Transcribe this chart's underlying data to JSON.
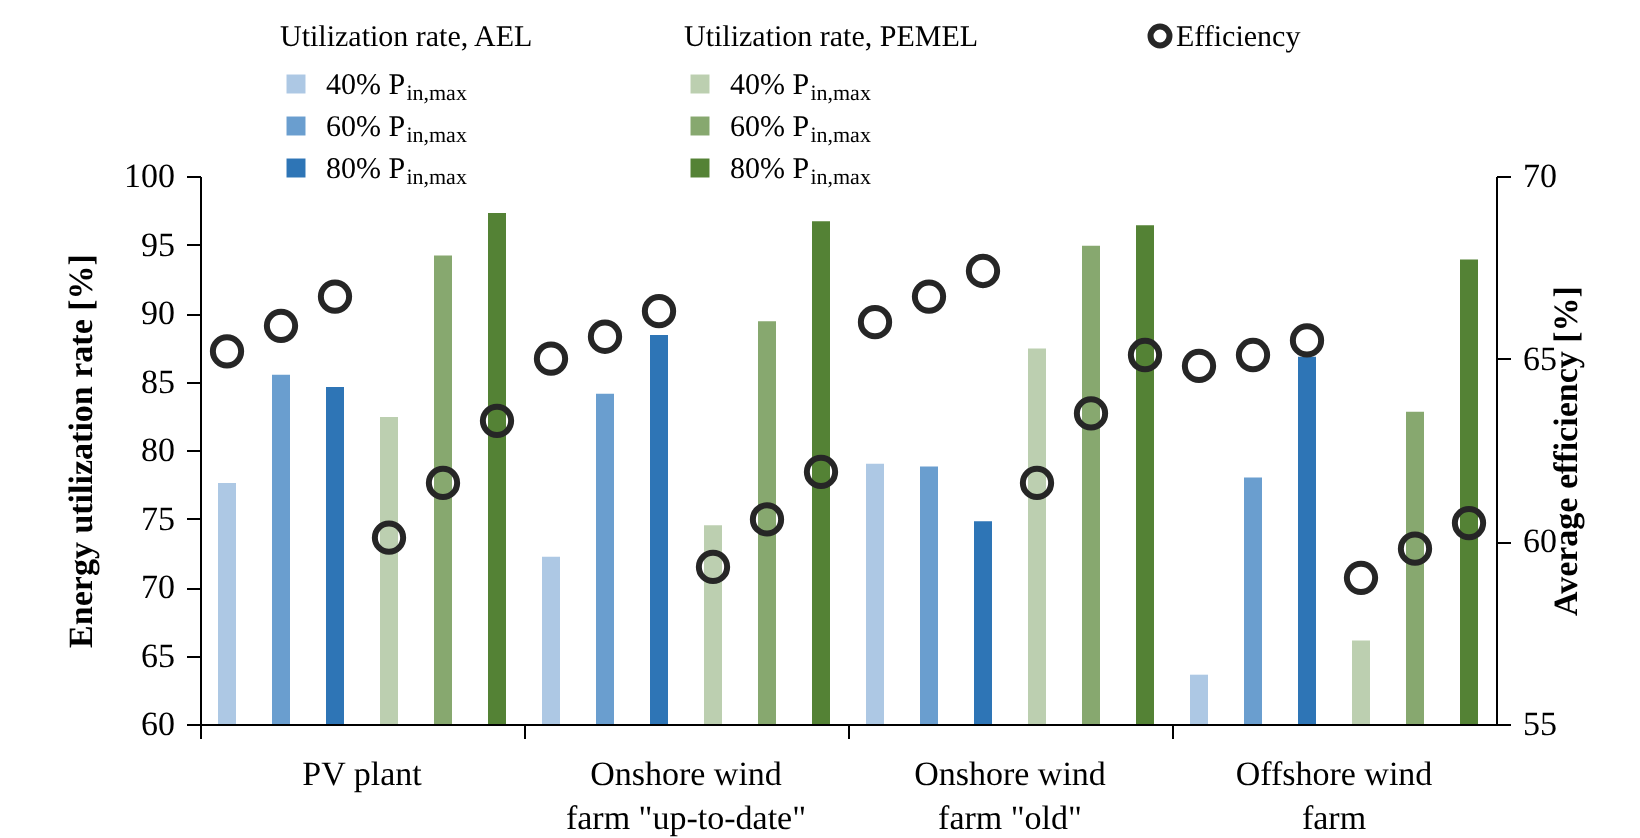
{
  "chart_data": {
    "type": "bar",
    "categories": [
      "PV plant",
      "Onshore wind farm \"up-to-date\"",
      "Onshore wind farm \"old\"",
      "Offshore wind farm"
    ],
    "ylabel": "Energy utilization rate [%]",
    "y2label": "Average efficiency [%]",
    "ylim": [
      60,
      100
    ],
    "yticks": [
      60,
      65,
      70,
      75,
      80,
      85,
      90,
      95,
      100
    ],
    "y2lim": [
      55,
      70
    ],
    "y2ticks": [
      55,
      60,
      65,
      70
    ],
    "annotations": [
      "Utilization rate, AEL",
      "Utilization rate, PEMEL"
    ],
    "legend": "top",
    "series": [
      {
        "name": "40% P$_{in,max}$",
        "color": "#adc8e4",
        "values": [
          77.6,
          72.2,
          79.0,
          63.6
        ]
      },
      {
        "name": "60% P$_{in,max}$",
        "color": "#6a9ecf",
        "values": [
          85.5,
          84.1,
          78.8,
          78.0
        ]
      },
      {
        "name": "80% P$_{in,max}$",
        "color": "#2e75b6",
        "values": [
          84.6,
          88.4,
          74.8,
          86.8
        ]
      },
      {
        "name": "40% P$_{in,max}$",
        "color": "#bccfb0",
        "values": [
          82.4,
          74.5,
          87.4,
          66.1
        ]
      },
      {
        "name": "60% P$_{in,max}$",
        "color": "#87a86f",
        "values": [
          94.2,
          89.4,
          94.9,
          82.8
        ]
      },
      {
        "name": "80% P$_{in,max}$",
        "color": "#548235",
        "values": [
          97.3,
          96.7,
          96.4,
          93.9
        ]
      },
      {
        "name": "Efficiency",
        "type": "scatter",
        "axis": "y2",
        "marker": "circle",
        "color": "#262626",
        "x": [
          "PV plant",
          "PV plant",
          "PV plant",
          "PV plant",
          "PV plant",
          "PV plant",
          "Onshore wind farm \"up-to-date\"",
          "Onshore wind farm \"up-to-date\"",
          "Onshore wind farm \"up-to-date\"",
          "Onshore wind farm \"up-to-date\"",
          "Onshore wind farm \"up-to-date\"",
          "Onshore wind farm \"up-to-date\"",
          "Onshore wind farm \"old\"",
          "Onshore wind farm \"old\"",
          "Onshore wind farm \"old\"",
          "Onshore wind farm \"old\"",
          "Onshore wind farm \"old\"",
          "Onshore wind farm \"old\"",
          "Offshore wind farm",
          "Offshore wind farm",
          "Offshore wind farm",
          "Offshore wind farm",
          "Offshore wind farm",
          "Offshore wind farm"
        ],
        "values": [
          65.2,
          65.9,
          66.7,
          60.1,
          61.6,
          63.3,
          65.0,
          65.6,
          66.3,
          59.3,
          60.6,
          61.9,
          66.0,
          66.7,
          67.4,
          61.6,
          63.5,
          65.1,
          64.8,
          65.1,
          65.5,
          59.0,
          59.8,
          60.5
        ]
      }
    ]
  }
}
